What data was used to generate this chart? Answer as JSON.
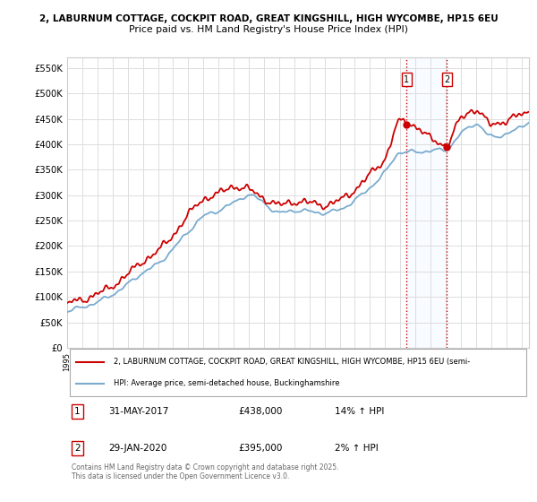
{
  "title1": "2, LABURNUM COTTAGE, COCKPIT ROAD, GREAT KINGSHILL, HIGH WYCOMBE, HP15 6EU",
  "title2": "Price paid vs. HM Land Registry's House Price Index (HPI)",
  "ylim": [
    0,
    570000
  ],
  "xlim_start": 1995.0,
  "xlim_end": 2025.5,
  "property_color": "#cc0000",
  "hpi_color": "#7aabcf",
  "vline_color": "#cc0000",
  "sale1_date": 2017.42,
  "sale1_price": 438000,
  "sale1_label": "1",
  "sale2_date": 2020.08,
  "sale2_price": 395000,
  "sale2_label": "2",
  "legend_property": "2, LABURNUM COTTAGE, COCKPIT ROAD, GREAT KINGSHILL, HIGH WYCOMBE, HP15 6EU (semi-",
  "legend_hpi": "HPI: Average price, semi-detached house, Buckinghamshire",
  "table_row1": [
    "1",
    "31-MAY-2017",
    "£438,000",
    "14% ↑ HPI"
  ],
  "table_row2": [
    "2",
    "29-JAN-2020",
    "£395,000",
    "2% ↑ HPI"
  ],
  "footer": "Contains HM Land Registry data © Crown copyright and database right 2025.\nThis data is licensed under the Open Government Licence v3.0.",
  "background_color": "#ffffff",
  "grid_color": "#dddddd",
  "highlight_color": "#ddeeff",
  "hpi_key_years": [
    1995,
    1996,
    1997,
    1998,
    1999,
    2000,
    2001,
    2002,
    2003,
    2004,
    2005,
    2006,
    2007,
    2008,
    2009,
    2010,
    2011,
    2012,
    2013,
    2014,
    2015,
    2016,
    2017,
    2018,
    2019,
    2020,
    2021,
    2022,
    2023,
    2024,
    2025
  ],
  "hpi_key_vals": [
    72000,
    80000,
    90000,
    105000,
    125000,
    148000,
    165000,
    195000,
    228000,
    258000,
    270000,
    285000,
    300000,
    285000,
    265000,
    270000,
    268000,
    265000,
    272000,
    290000,
    315000,
    345000,
    384000,
    385000,
    387000,
    390000,
    420000,
    440000,
    415000,
    420000,
    435000
  ],
  "prop_key_years": [
    1995,
    1996,
    1997,
    1998,
    1999,
    2000,
    2001,
    2002,
    2003,
    2004,
    2005,
    2006,
    2007,
    2008,
    2009,
    2010,
    2011,
    2012,
    2013,
    2014,
    2015,
    2016,
    2017,
    2018,
    2019,
    2020,
    2021,
    2022,
    2023,
    2024,
    2025
  ],
  "prop_key_vals": [
    85000,
    93000,
    103000,
    120000,
    142000,
    168000,
    188000,
    220000,
    258000,
    290000,
    300000,
    315000,
    308000,
    292000,
    278000,
    285000,
    282000,
    278000,
    286000,
    307000,
    335000,
    368000,
    438000,
    430000,
    405000,
    395000,
    445000,
    465000,
    435000,
    445000,
    455000
  ]
}
